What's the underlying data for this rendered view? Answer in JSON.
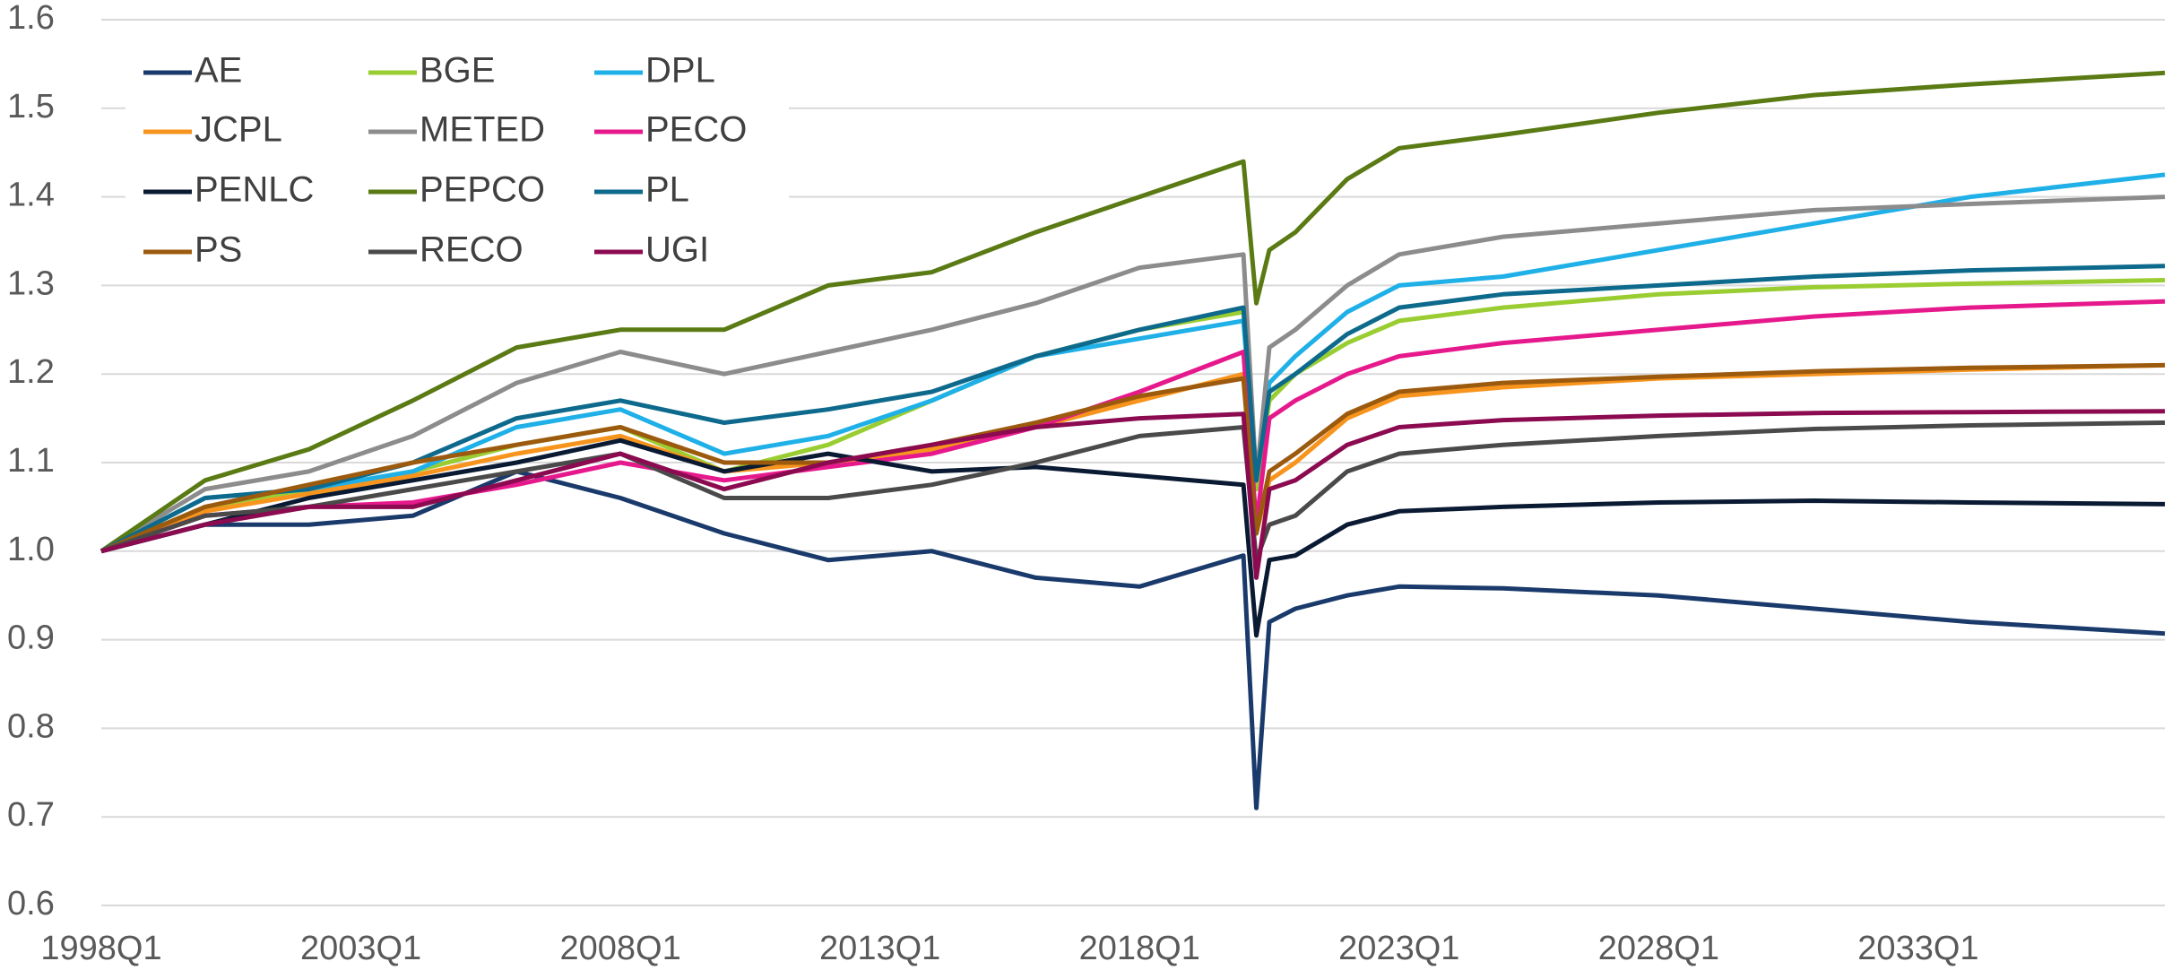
{
  "chart_data": {
    "type": "line",
    "legend": "upper left",
    "grid": true,
    "x": [
      1998,
      2000,
      2002,
      2004,
      2006,
      2008,
      2010,
      2012,
      2014,
      2016,
      2018,
      2020,
      2020.25,
      2020.5,
      2021,
      2022,
      2023,
      2025,
      2028,
      2031,
      2034,
      2037.75
    ],
    "xlim": [
      1998,
      2037.75
    ],
    "xticks": [
      {
        "value": 1998,
        "label": "1998Q1"
      },
      {
        "value": 2003,
        "label": "2003Q1"
      },
      {
        "value": 2008,
        "label": "2008Q1"
      },
      {
        "value": 2013,
        "label": "2013Q1"
      },
      {
        "value": 2018,
        "label": "2018Q1"
      },
      {
        "value": 2023,
        "label": "2023Q1"
      },
      {
        "value": 2028,
        "label": "2028Q1"
      },
      {
        "value": 2033,
        "label": "2033Q1"
      }
    ],
    "ylim": [
      0.6,
      1.6
    ],
    "yticks": [
      0.6,
      0.7,
      0.8,
      0.9,
      {
        "value": 1,
        "label": "1.0"
      },
      1.1,
      1.2,
      1.3,
      1.4,
      1.5,
      1.6
    ],
    "series": [
      {
        "name": "AE",
        "color": "#1a3a6b",
        "values": [
          1.0,
          1.03,
          1.03,
          1.04,
          1.09,
          1.06,
          1.02,
          0.99,
          1.0,
          0.97,
          0.96,
          0.995,
          0.71,
          0.92,
          0.935,
          0.95,
          0.96,
          0.958,
          0.95,
          0.935,
          0.92,
          0.907
        ]
      },
      {
        "name": "BGE",
        "color": "#9acd32",
        "values": [
          1.0,
          1.05,
          1.07,
          1.09,
          1.12,
          1.14,
          1.09,
          1.12,
          1.17,
          1.22,
          1.25,
          1.27,
          1.07,
          1.17,
          1.2,
          1.235,
          1.26,
          1.275,
          1.29,
          1.298,
          1.302,
          1.306
        ]
      },
      {
        "name": "DPL",
        "color": "#1fb0e8",
        "values": [
          1.0,
          1.06,
          1.07,
          1.09,
          1.14,
          1.16,
          1.11,
          1.13,
          1.17,
          1.22,
          1.24,
          1.26,
          1.08,
          1.19,
          1.22,
          1.27,
          1.3,
          1.31,
          1.34,
          1.37,
          1.4,
          1.425
        ]
      },
      {
        "name": "JCPL",
        "color": "#f7941d",
        "values": [
          1.0,
          1.045,
          1.065,
          1.085,
          1.11,
          1.13,
          1.09,
          1.1,
          1.115,
          1.14,
          1.17,
          1.2,
          1.02,
          1.08,
          1.1,
          1.15,
          1.175,
          1.185,
          1.195,
          1.2,
          1.205,
          1.21
        ]
      },
      {
        "name": "METED",
        "color": "#8c8c8c",
        "values": [
          1.0,
          1.07,
          1.09,
          1.13,
          1.19,
          1.225,
          1.2,
          1.225,
          1.25,
          1.28,
          1.32,
          1.335,
          1.08,
          1.23,
          1.25,
          1.3,
          1.335,
          1.355,
          1.37,
          1.385,
          1.392,
          1.4
        ]
      },
      {
        "name": "PECO",
        "color": "#e6198c",
        "values": [
          1.0,
          1.04,
          1.05,
          1.055,
          1.075,
          1.1,
          1.08,
          1.095,
          1.11,
          1.14,
          1.18,
          1.225,
          1.03,
          1.15,
          1.17,
          1.2,
          1.22,
          1.235,
          1.25,
          1.265,
          1.275,
          1.282
        ]
      },
      {
        "name": "PENLC",
        "color": "#0a1a33",
        "values": [
          1.0,
          1.03,
          1.06,
          1.08,
          1.1,
          1.125,
          1.09,
          1.11,
          1.09,
          1.095,
          1.085,
          1.075,
          0.905,
          0.99,
          0.995,
          1.03,
          1.045,
          1.05,
          1.055,
          1.057,
          1.055,
          1.053
        ]
      },
      {
        "name": "PEPCO",
        "color": "#5a7a14",
        "values": [
          1.0,
          1.08,
          1.115,
          1.17,
          1.23,
          1.25,
          1.25,
          1.3,
          1.315,
          1.36,
          1.4,
          1.44,
          1.28,
          1.34,
          1.36,
          1.42,
          1.455,
          1.47,
          1.495,
          1.515,
          1.527,
          1.54
        ]
      },
      {
        "name": "PL",
        "color": "#0e6a8c",
        "values": [
          1.0,
          1.06,
          1.07,
          1.1,
          1.15,
          1.17,
          1.145,
          1.16,
          1.18,
          1.22,
          1.25,
          1.275,
          1.08,
          1.18,
          1.2,
          1.245,
          1.275,
          1.29,
          1.3,
          1.31,
          1.317,
          1.322
        ]
      },
      {
        "name": "PS",
        "color": "#9c5a0e",
        "values": [
          1.0,
          1.05,
          1.075,
          1.1,
          1.12,
          1.14,
          1.1,
          1.1,
          1.12,
          1.145,
          1.175,
          1.195,
          1.02,
          1.09,
          1.11,
          1.155,
          1.18,
          1.19,
          1.197,
          1.203,
          1.207,
          1.21
        ]
      },
      {
        "name": "RECO",
        "color": "#4a4a4a",
        "values": [
          1.0,
          1.04,
          1.05,
          1.07,
          1.09,
          1.11,
          1.06,
          1.06,
          1.075,
          1.1,
          1.13,
          1.14,
          0.99,
          1.03,
          1.04,
          1.09,
          1.11,
          1.12,
          1.13,
          1.138,
          1.142,
          1.145
        ]
      },
      {
        "name": "UGI",
        "color": "#8b0a50",
        "values": [
          1.0,
          1.03,
          1.05,
          1.05,
          1.08,
          1.11,
          1.07,
          1.1,
          1.12,
          1.14,
          1.15,
          1.155,
          0.97,
          1.07,
          1.08,
          1.12,
          1.14,
          1.148,
          1.153,
          1.156,
          1.157,
          1.158
        ]
      }
    ]
  }
}
